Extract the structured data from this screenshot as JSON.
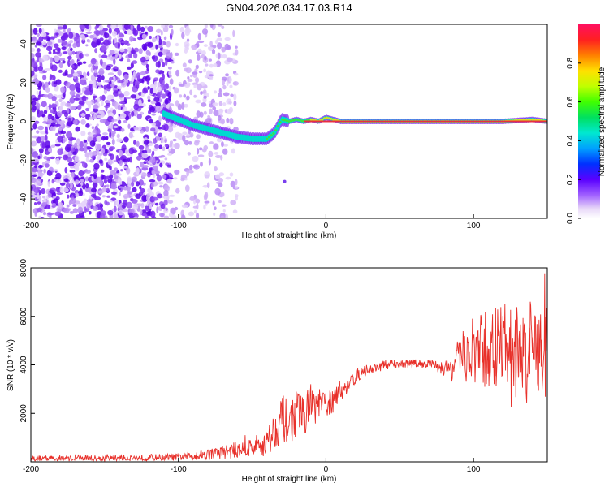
{
  "title": "GN04.2026.034.17.03.R14",
  "chart_data": [
    {
      "type": "heatmap",
      "xlabel": "Height of straight line (km)",
      "ylabel": "Frequency (Hz)",
      "xlim": [
        -200,
        150
      ],
      "ylim": [
        -50,
        50
      ],
      "x_ticks": [
        -200,
        -100,
        0,
        100
      ],
      "y_ticks": [
        -40,
        -20,
        0,
        20,
        40
      ],
      "noise_region_x": [
        -200,
        -60
      ],
      "dense_noise_x": [
        -200,
        -105
      ],
      "signal_track": {
        "x": [
          -110,
          -100,
          -90,
          -80,
          -70,
          -60,
          -50,
          -40,
          -35,
          -30,
          -25,
          -20,
          -15,
          -10,
          -5,
          0,
          5,
          10,
          20,
          40,
          60,
          80,
          100,
          120,
          140,
          150
        ],
        "freq": [
          4,
          1,
          -2,
          -4,
          -6,
          -8,
          -9,
          -9,
          -6,
          1,
          0,
          1,
          0,
          1,
          0,
          2,
          1,
          0,
          0,
          0,
          0,
          0,
          0,
          0,
          1,
          0
        ]
      },
      "colorbar": {
        "label": "Normalized spectral amplitude",
        "range": [
          0,
          1
        ],
        "ticks": [
          "0.0",
          "0.2",
          "0.4",
          "0.6",
          "0.8"
        ]
      }
    },
    {
      "type": "line",
      "xlabel": "Height of straight line (km)",
      "ylabel": "SNR (10 * v/v)",
      "xlim": [
        -200,
        150
      ],
      "ylim": [
        0,
        8000
      ],
      "x_ticks": [
        -200,
        -100,
        0,
        100
      ],
      "y_ticks": [
        2000,
        4000,
        6000,
        8000
      ],
      "color": "#e8302a",
      "series": [
        {
          "name": "SNR",
          "x": [
            -200,
            -150,
            -100,
            -75,
            -60,
            -50,
            -45,
            -40,
            -35,
            -30,
            -25,
            -20,
            -15,
            -10,
            -5,
            0,
            5,
            10,
            15,
            20,
            25,
            30,
            40,
            50,
            60,
            70,
            75,
            80,
            85,
            90,
            95,
            100,
            110,
            120,
            130,
            140,
            150
          ],
          "mean": [
            150,
            150,
            200,
            350,
            500,
            600,
            700,
            800,
            1300,
            1800,
            1600,
            2000,
            2000,
            2300,
            2300,
            2400,
            2500,
            2900,
            3200,
            3500,
            3700,
            3800,
            4000,
            4050,
            4050,
            4050,
            4000,
            3800,
            3900,
            4200,
            4400,
            4500,
            4600,
            4800,
            4600,
            4700,
            4600
          ],
          "amp": [
            120,
            120,
            150,
            250,
            350,
            450,
            500,
            600,
            800,
            1000,
            900,
            1000,
            900,
            800,
            700,
            600,
            500,
            400,
            350,
            300,
            250,
            200,
            200,
            180,
            180,
            180,
            200,
            300,
            600,
            900,
            1200,
            1500,
            1700,
            1800,
            1900,
            2000,
            2000
          ]
        }
      ]
    }
  ]
}
